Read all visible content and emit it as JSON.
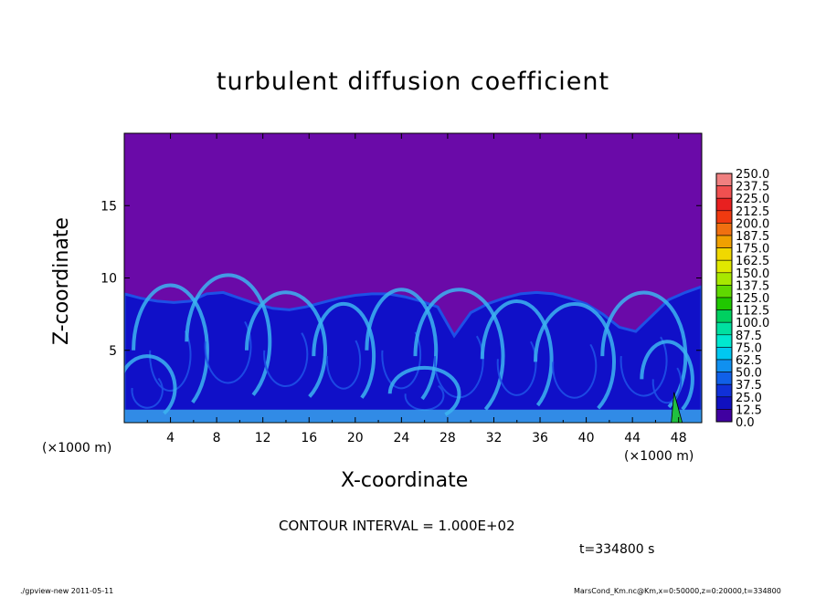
{
  "chart_data": {
    "type": "heatmap",
    "title": "turbulent diffusion coefficient",
    "xlabel": "X-coordinate",
    "ylabel": "Z-coordinate",
    "x_unit_label_left": "(×1000 m)",
    "x_unit_label_right": "(×1000 m)",
    "xlim": [
      0,
      50
    ],
    "ylim": [
      0,
      20
    ],
    "xticks": [
      "4",
      "8",
      "12",
      "16",
      "20",
      "24",
      "28",
      "32",
      "36",
      "40",
      "44",
      "48"
    ],
    "yticks": [
      "5",
      "10",
      "15"
    ],
    "background_value": 0.0,
    "turbulent_layer_top_km": [
      8.9,
      8.6,
      8.4,
      8.3,
      8.4,
      8.9,
      9.0,
      8.6,
      8.2,
      7.9,
      7.8,
      8.0,
      8.3,
      8.6,
      8.8,
      8.9,
      8.9,
      8.7,
      8.4,
      8.0,
      6.0,
      7.6,
      8.2,
      8.6,
      8.9,
      9.0,
      8.9,
      8.6,
      8.2,
      7.5,
      6.6,
      6.3,
      7.4,
      8.5,
      9.0,
      9.4
    ],
    "colorbar": {
      "labels": [
        "250.0",
        "237.5",
        "225.0",
        "212.5",
        "200.0",
        "187.5",
        "175.0",
        "162.5",
        "150.0",
        "137.5",
        "125.0",
        "112.5",
        "100.0",
        "87.5",
        "75.0",
        "62.5",
        "50.0",
        "37.5",
        "25.0",
        "12.5",
        "0.0"
      ],
      "colors": [
        "#f08080",
        "#f05050",
        "#e82020",
        "#f03a10",
        "#f07010",
        "#f0a000",
        "#f0d800",
        "#e0e800",
        "#a8e800",
        "#60d800",
        "#20c800",
        "#00d060",
        "#00e0a0",
        "#00e8d0",
        "#00c8f0",
        "#1090f0",
        "#1060e8",
        "#1030d8",
        "#1010c0",
        "#4000a0"
      ]
    },
    "colors": {
      "background": "#6a0aa8",
      "deep": "#1010c8",
      "mid": "#1e50e6",
      "bright": "#3cb4f0",
      "green": "#20c040"
    },
    "contour_interval": "CONTOUR INTERVAL = 1.000E+02",
    "time_label": "t=334800 s"
  },
  "footer": {
    "left": "./gpview-new  2011-05-11",
    "right": "MarsCond_Km.nc@Km,x=0:50000,z=0:20000,t=334800"
  }
}
